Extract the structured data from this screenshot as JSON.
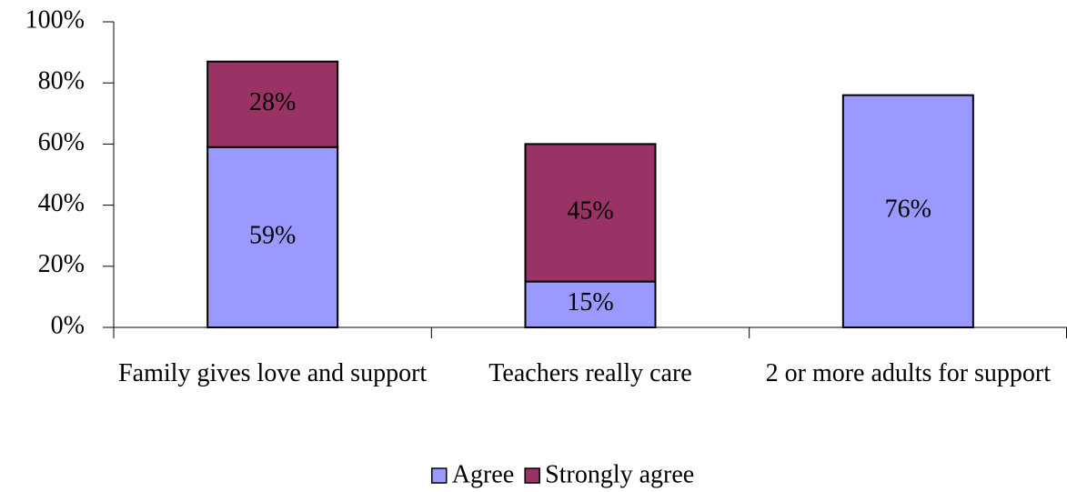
{
  "chart_data": {
    "type": "stacked_bar",
    "categories": [
      "Family gives love and support",
      "Teachers really care",
      "2 or more adults for support"
    ],
    "series": [
      {
        "name": "Agree",
        "color": "#9999ff",
        "values": [
          59,
          15,
          76
        ],
        "value_labels": [
          "59%",
          "15%",
          "76%"
        ]
      },
      {
        "name": "Strongly agree",
        "color": "#993366",
        "values": [
          28,
          45,
          null
        ],
        "value_labels": [
          "28%",
          "45%",
          null
        ]
      }
    ],
    "ylim": [
      0,
      100
    ],
    "yticks": [
      {
        "value": 0,
        "label": "0%"
      },
      {
        "value": 20,
        "label": "20%"
      },
      {
        "value": 40,
        "label": "40%"
      },
      {
        "value": 60,
        "label": "60%"
      },
      {
        "value": 80,
        "label": "80%"
      },
      {
        "value": 100,
        "label": "100%"
      }
    ],
    "legend": "bottom"
  }
}
